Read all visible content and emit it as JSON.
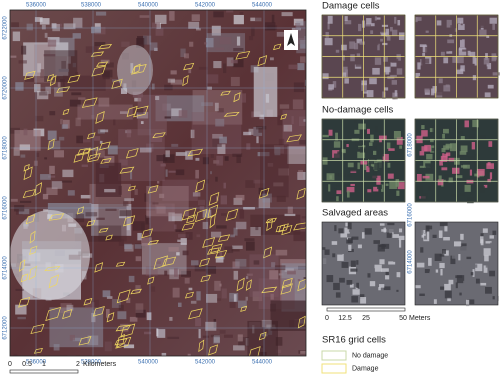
{
  "map": {
    "x_labels_top": [
      "536000",
      "538000",
      "540000",
      "542000",
      "544000"
    ],
    "x_labels_bottom": [
      "536000",
      "538000",
      "540000",
      "542000",
      "544000"
    ],
    "y_labels": [
      "6722000",
      "6720000",
      "6718000",
      "6716000",
      "6714000",
      "6712000"
    ]
  },
  "scale_bar": {
    "labels": [
      "0",
      "0.5",
      "1",
      "2"
    ],
    "unit": "Kilometers"
  },
  "panels": [
    {
      "title": "Damage cells"
    },
    {
      "title": "No-damage cells"
    },
    {
      "title": "Salvaged areas"
    }
  ],
  "panel_y_labels": [
    "6718000",
    "6716000",
    "6714000"
  ],
  "panel_scale_bar": {
    "labels": [
      "0",
      "12.5",
      "25",
      "50"
    ],
    "unit": "Meters"
  },
  "legend": {
    "title": "SR16 grid cells",
    "items": [
      "No damage",
      "Damage"
    ]
  }
}
